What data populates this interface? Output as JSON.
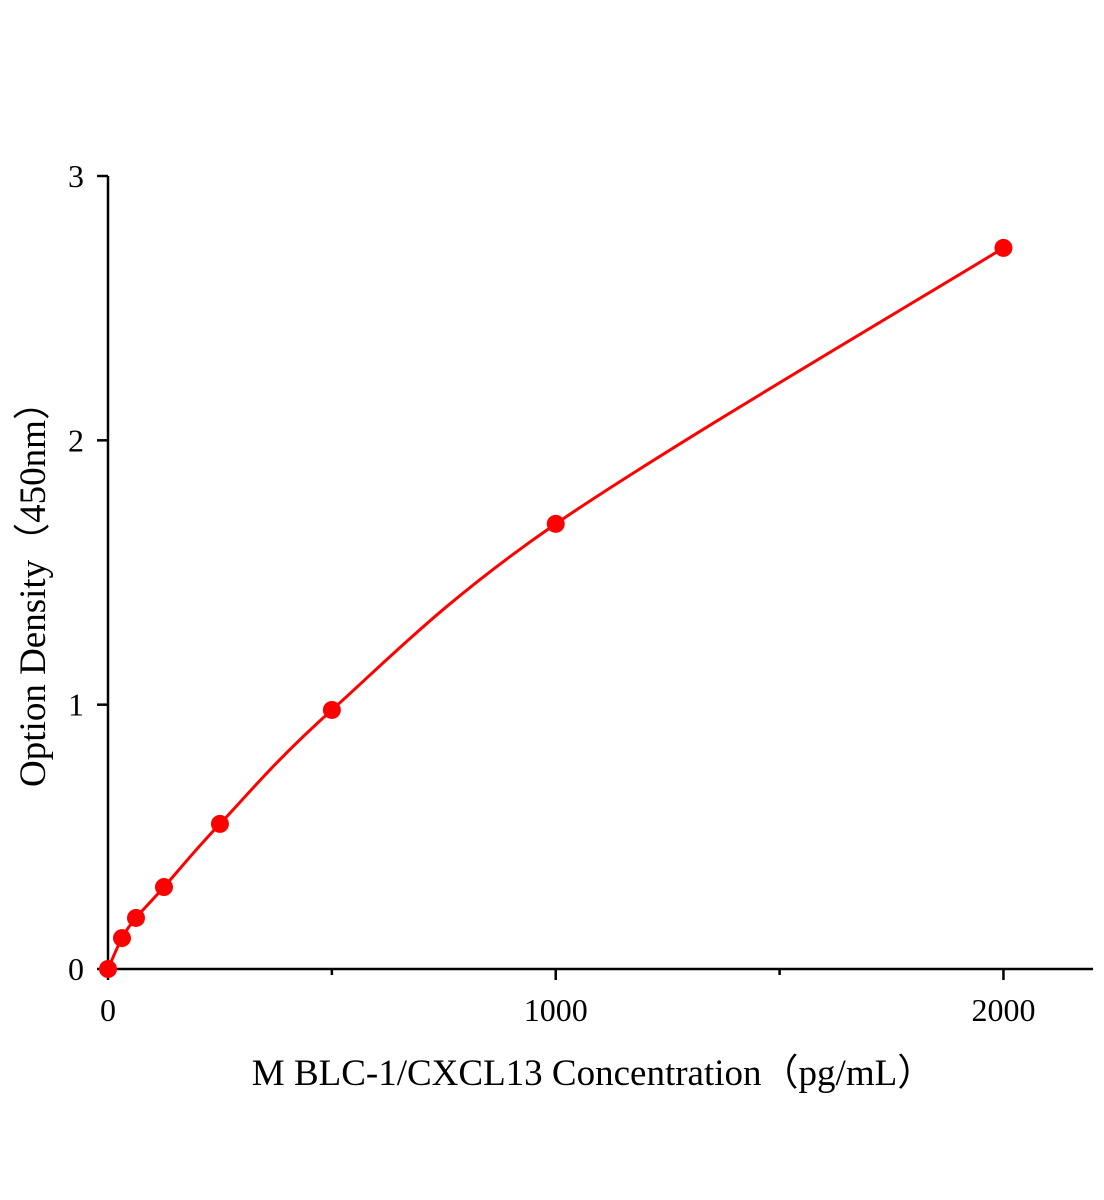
{
  "chart_data": {
    "type": "scatter",
    "x_label": "M BLC-1/CXCL13 Concentration（pg/mL）",
    "y_label": "Option Density（450nm）",
    "x": [
      0,
      31.25,
      62.5,
      125,
      250,
      500,
      1000,
      2000
    ],
    "values": [
      0,
      0.117,
      0.193,
      0.31,
      0.549,
      0.98,
      1.684,
      2.728
    ],
    "color": "#ff0000",
    "curve": true,
    "xlim": [
      0,
      2200
    ],
    "xticks": [
      0,
      1000,
      2000
    ],
    "xminorticks": [
      500,
      1500
    ],
    "ylim": [
      0,
      3
    ],
    "yticks": [
      0,
      1,
      2,
      3
    ]
  }
}
